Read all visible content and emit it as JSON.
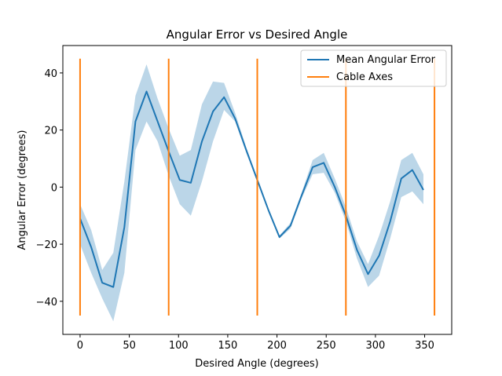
{
  "chart_data": {
    "type": "line",
    "title": "Angular Error vs Desired Angle",
    "xlabel": "Desired Angle (degrees)",
    "ylabel": "Angular Error (degrees)",
    "xlim": [
      -17.5,
      377.5
    ],
    "ylim": [
      -51.6,
      49.6
    ],
    "xticks": [
      0,
      50,
      100,
      150,
      200,
      250,
      300,
      350
    ],
    "yticks": [
      -40,
      -20,
      0,
      20,
      40
    ],
    "grid": false,
    "legend_placement": "top-right",
    "series": [
      {
        "name": "Mean Angular Error",
        "color": "#1f77b4",
        "band_color": "#1f77b4",
        "x": [
          0,
          11.25,
          22.5,
          33.75,
          45,
          56.25,
          67.5,
          78.75,
          90,
          101.25,
          112.5,
          123.75,
          135,
          146.25,
          157.5,
          168.75,
          180,
          191.25,
          202.5,
          213.75,
          225,
          236.25,
          247.5,
          258.75,
          270,
          281.25,
          292.5,
          303.75,
          315,
          326.25,
          337.5,
          348.75
        ],
        "values": [
          -11,
          -21,
          -33.5,
          -35,
          -14,
          23,
          33.5,
          23,
          12.5,
          2.5,
          1.5,
          16,
          26.5,
          31.5,
          24,
          13,
          2.5,
          -8,
          -17.5,
          -13.5,
          -3,
          7,
          8.5,
          0,
          -10,
          -22,
          -30.5,
          -24,
          -12,
          3,
          6,
          -1
        ],
        "lower": [
          -20,
          -30,
          -39,
          -47,
          -30,
          13,
          23,
          16,
          4,
          -6,
          -10,
          2,
          16,
          27,
          23,
          12,
          2,
          -8.5,
          -18,
          -14.5,
          -4,
          4.5,
          5,
          -2,
          -12,
          -25,
          -35,
          -31,
          -18,
          -3.5,
          -1.5,
          -6
        ],
        "upper": [
          -6,
          -15,
          -29,
          -23,
          2,
          32,
          43,
          31,
          20.5,
          11,
          13,
          29,
          37,
          36.5,
          26,
          14,
          3,
          -7.5,
          -17,
          -12.5,
          -2,
          9.5,
          12,
          3,
          -7,
          -19,
          -27,
          -17,
          -5,
          9.5,
          12,
          4.5
        ]
      },
      {
        "name": "Cable Axes",
        "color": "#ff7f0e",
        "type": "vlines",
        "x": [
          0,
          90,
          180,
          270,
          360
        ],
        "ymin": -45,
        "ymax": 45
      }
    ]
  }
}
